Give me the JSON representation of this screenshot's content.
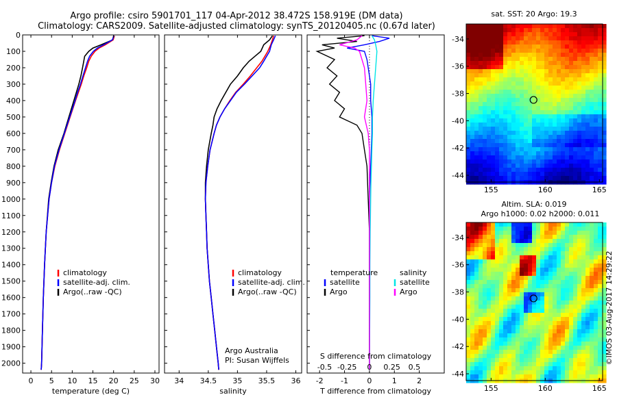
{
  "header": {
    "line1": "Argo profile: csiro 5901701_117 04-Apr-2012 38.472S 158.919E (DM data)",
    "line2": "Climatology: CARS2009. Satellite-adjusted climatology: synTS_20120405.nc (0.67d later)"
  },
  "colors": {
    "climatology": "#ff0000",
    "satellite": "#0000ff",
    "argo": "#000000",
    "sal_satellite": "#00e5e5",
    "sal_argo": "#ff00ff"
  },
  "chart_data": [
    {
      "type": "line",
      "id": "temperature",
      "xlabel": "temperature (deg C)",
      "xlim": [
        -2,
        31
      ],
      "ylim": [
        0,
        2060
      ],
      "xticks": [
        0,
        5,
        10,
        15,
        20,
        25,
        30
      ],
      "yticks": [
        0,
        100,
        200,
        300,
        400,
        500,
        600,
        700,
        800,
        900,
        1000,
        1100,
        1200,
        1300,
        1400,
        1500,
        1600,
        1700,
        1800,
        1900,
        2000
      ],
      "legend": [
        "climatology",
        "satellite-adj. clim.",
        "Argo(..raw -QC)"
      ],
      "series": [
        {
          "name": "Argo(..raw -QC)",
          "depth": [
            5,
            30,
            60,
            80,
            100,
            130,
            160,
            200,
            250,
            300,
            350,
            400,
            500,
            600,
            700,
            800,
            900,
            1000,
            1200,
            1400,
            1600,
            1800,
            2000,
            2040
          ],
          "values": [
            20,
            19.8,
            17,
            15,
            14,
            13,
            12.8,
            12.5,
            12.1,
            11.6,
            11,
            10.4,
            9.2,
            8,
            6.6,
            5.6,
            4.9,
            4.3,
            3.7,
            3.3,
            3,
            2.8,
            2.6,
            2.5
          ]
        },
        {
          "name": "climatology",
          "depth": [
            5,
            30,
            60,
            80,
            100,
            130,
            160,
            200,
            250,
            300,
            350,
            400,
            500,
            600,
            700,
            800,
            900,
            1000,
            1200,
            1400,
            1600,
            1800,
            2000,
            2040
          ],
          "values": [
            20.2,
            19.9,
            18,
            16.5,
            15.5,
            14.6,
            14,
            13.5,
            12.8,
            12.2,
            11.5,
            10.8,
            9.5,
            8.2,
            6.9,
            5.8,
            5,
            4.4,
            3.7,
            3.3,
            3,
            2.8,
            2.6,
            2.5
          ]
        },
        {
          "name": "satellite-adj. clim.",
          "depth": [
            5,
            30,
            60,
            80,
            100,
            130,
            160,
            200,
            250,
            300,
            350,
            400,
            500,
            600,
            700,
            800,
            900,
            1000,
            1200,
            1400,
            1600,
            1800,
            2000,
            2040
          ],
          "values": [
            20.1,
            19.7,
            17.6,
            16.1,
            15.1,
            14.2,
            13.7,
            13.2,
            12.6,
            12,
            11.3,
            10.7,
            9.4,
            8.1,
            6.8,
            5.7,
            5,
            4.4,
            3.7,
            3.3,
            3,
            2.8,
            2.6,
            2.5
          ]
        }
      ]
    },
    {
      "type": "line",
      "id": "salinity",
      "xlabel": "salinity",
      "xlim": [
        33.75,
        36.1
      ],
      "ylim": [
        0,
        2060
      ],
      "xticks": [
        34,
        34.5,
        35,
        35.5,
        36
      ],
      "legend": [
        "climatology",
        "satellite-adj. clim.",
        "Argo(..raw -QC)"
      ],
      "annotation": [
        "Argo Australia",
        "PI: Susan Wijffels"
      ],
      "series": [
        {
          "name": "Argo(..raw -QC)",
          "depth": [
            5,
            30,
            60,
            100,
            130,
            160,
            200,
            250,
            300,
            350,
            400,
            450,
            500,
            550,
            600,
            700,
            800,
            900,
            1000,
            1100,
            1200,
            1300,
            1400,
            1500,
            1600,
            1700,
            1800,
            1900,
            2000,
            2040
          ],
          "values": [
            35.6,
            35.55,
            35.45,
            35.4,
            35.3,
            35.2,
            35.1,
            35,
            34.88,
            34.8,
            34.72,
            34.65,
            34.6,
            34.58,
            34.55,
            34.5,
            34.47,
            34.45,
            34.45,
            34.46,
            34.47,
            34.48,
            34.5,
            34.52,
            34.55,
            34.58,
            34.61,
            34.64,
            34.67,
            34.68
          ]
        },
        {
          "name": "climatology",
          "depth": [
            5,
            30,
            60,
            100,
            130,
            160,
            200,
            250,
            300,
            350,
            400,
            450,
            500,
            550,
            600,
            700,
            800,
            900,
            1000,
            1100,
            1200,
            1300,
            1400,
            1500,
            1600,
            1700,
            1800,
            1900,
            2000,
            2040
          ],
          "values": [
            35.62,
            35.6,
            35.57,
            35.52,
            35.47,
            35.42,
            35.33,
            35.22,
            35.1,
            34.97,
            34.87,
            34.78,
            34.7,
            34.64,
            34.6,
            34.53,
            34.49,
            34.46,
            34.45,
            34.46,
            34.47,
            34.48,
            34.5,
            34.52,
            34.55,
            34.58,
            34.61,
            34.64,
            34.67,
            34.68
          ]
        },
        {
          "name": "satellite-adj. clim.",
          "depth": [
            5,
            30,
            60,
            100,
            130,
            160,
            200,
            250,
            300,
            350,
            400,
            450,
            500,
            550,
            600,
            700,
            800,
            900,
            1000,
            1100,
            1200,
            1300,
            1400,
            1500,
            1600,
            1700,
            1800,
            1900,
            2000,
            2040
          ],
          "values": [
            35.65,
            35.62,
            35.58,
            35.55,
            35.5,
            35.45,
            35.38,
            35.25,
            35.12,
            34.98,
            34.88,
            34.78,
            34.7,
            34.64,
            34.6,
            34.53,
            34.49,
            34.46,
            34.45,
            34.46,
            34.47,
            34.48,
            34.5,
            34.52,
            34.55,
            34.58,
            34.61,
            34.64,
            34.67,
            34.68
          ]
        }
      ]
    },
    {
      "type": "line",
      "id": "difference",
      "xlabel": "T difference from climatology",
      "top_label": "S difference from climatology",
      "xlim": [
        -2.5,
        3
      ],
      "ylim": [
        0,
        2060
      ],
      "xticks": [
        -2,
        -1,
        0,
        1,
        2
      ],
      "sticks": [
        {
          "label": "-0.5",
          "t": -1.8
        },
        {
          "label": "-0.25",
          "t": -0.9
        },
        {
          "label": "0",
          "t": 0
        },
        {
          "label": "0.25",
          "t": 0.9
        },
        {
          "label": "0.5",
          "t": 1.8
        }
      ],
      "legend_t_title": "temperature",
      "legend_s_title": "salinity",
      "legend": [
        "satellite",
        "Argo",
        "satellite",
        "Argo"
      ],
      "series": [
        {
          "name": "T satellite",
          "depth": [
            5,
            20,
            40,
            60,
            80,
            100,
            150,
            200,
            300,
            400,
            500,
            600,
            800,
            1000,
            1500,
            2040
          ],
          "values": [
            0.1,
            0.8,
            0.4,
            -0.2,
            -0.9,
            -0.2,
            -0.1,
            -0.05,
            0.05,
            0.05,
            0.1,
            0.1,
            0.05,
            0,
            0,
            0
          ]
        },
        {
          "name": "T Argo",
          "depth": [
            5,
            20,
            40,
            60,
            80,
            100,
            150,
            200,
            250,
            300,
            350,
            400,
            450,
            500,
            550,
            600,
            700,
            800,
            1000,
            1200,
            1500,
            2040
          ],
          "values": [
            -0.2,
            -1.3,
            -0.5,
            -1.9,
            -1.4,
            -2.1,
            -1.4,
            -1.7,
            -1.3,
            -1.6,
            -1.2,
            -1.4,
            -1,
            -1.2,
            -0.5,
            -0.3,
            -0.2,
            -0.1,
            -0.05,
            0,
            0,
            0
          ]
        },
        {
          "name": "S satellite",
          "depth": [
            5,
            30,
            60,
            100,
            200,
            300,
            400,
            500,
            600,
            700,
            800,
            900,
            1000,
            1200,
            1400,
            1600,
            1800,
            2040
          ],
          "values": [
            0.1,
            0.2,
            0.25,
            0.3,
            0.25,
            0.2,
            0.15,
            0.12,
            0.12,
            0.1,
            0.08,
            0.06,
            0.05,
            0.03,
            0.02,
            0.02,
            0.01,
            0
          ]
        },
        {
          "name": "S Argo",
          "depth": [
            5,
            30,
            60,
            80,
            100,
            150,
            200,
            300,
            400,
            500,
            600,
            700,
            800,
            1000,
            1200,
            1600,
            2040
          ],
          "values": [
            -0.3,
            -0.5,
            -1.2,
            -0.6,
            -0.4,
            -0.3,
            -0.2,
            -0.15,
            -0.1,
            -0.2,
            -0.05,
            0,
            0,
            0,
            0,
            0,
            0
          ]
        }
      ]
    }
  ],
  "maps": [
    {
      "id": "sst",
      "title": "sat. SST: 20 Argo: 19.3",
      "xticks": [
        155,
        160,
        165
      ],
      "yticks": [
        -34,
        -36,
        -38,
        -40,
        -42,
        -44
      ],
      "xlim": [
        152.7,
        165.3
      ],
      "ylim": [
        -44.5,
        -32.9
      ],
      "marker": {
        "lon": 158.919,
        "lat": -38.472
      }
    },
    {
      "id": "sla",
      "title_line1": "Altim. SLA: 0.019",
      "title_line2": "Argo h1000: 0.02 h2000: 0.011",
      "xticks": [
        155,
        160,
        165
      ],
      "yticks": [
        -34,
        -36,
        -38,
        -40,
        -42,
        -44
      ],
      "xlim": [
        152.7,
        165.3
      ],
      "ylim": [
        -44.5,
        -32.9
      ],
      "marker": {
        "lon": 158.919,
        "lat": -38.472
      }
    }
  ],
  "credit": "©IMOS 03-Aug-2017 14:29:22"
}
